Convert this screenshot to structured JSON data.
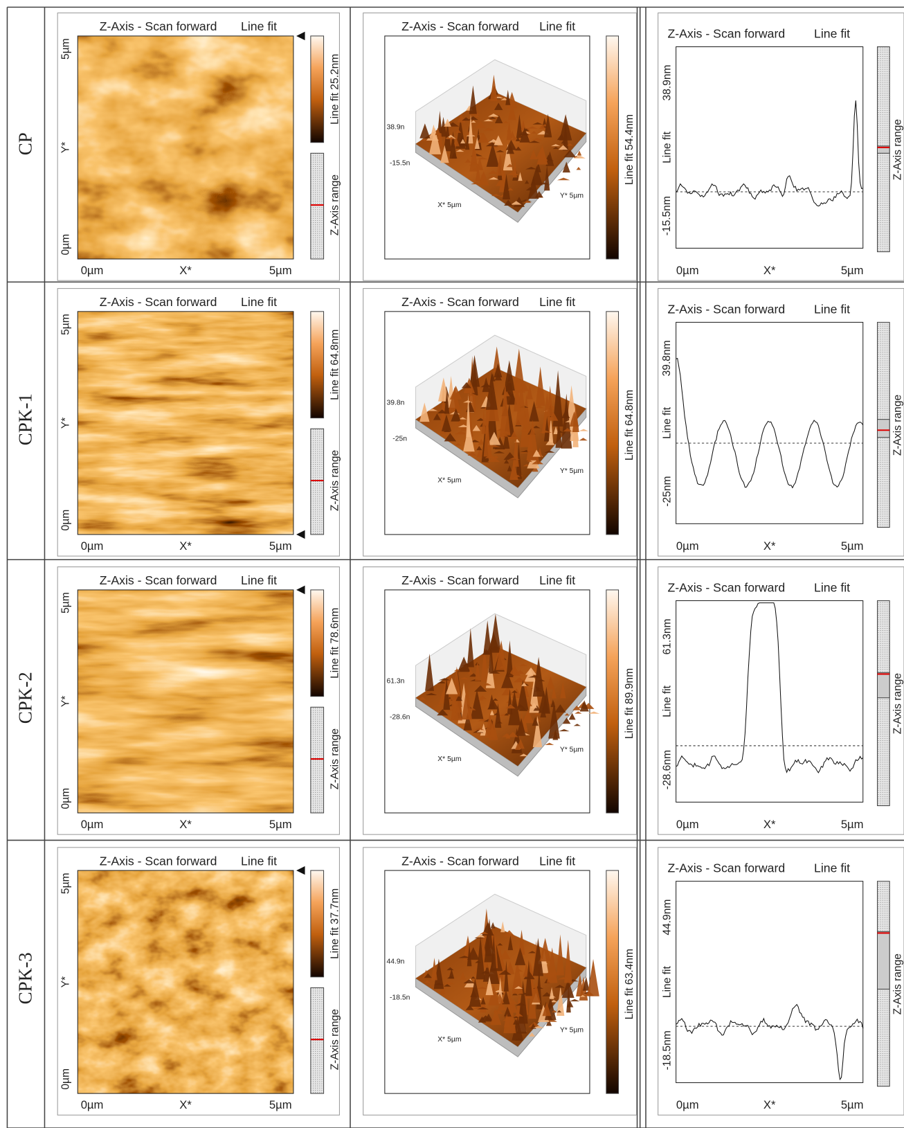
{
  "rows": [
    {
      "label": "CP",
      "image": {
        "title": "Z-Axis - Scan forward",
        "mode": "Line fit",
        "y_max": "5µm",
        "y_axis": "Y*",
        "y_min": "0µm",
        "x_min": "0µm",
        "x_axis": "X*",
        "x_max": "5µm",
        "colorbar": "Line fit 25.2nm",
        "range": "Z-Axis range"
      },
      "surface": {
        "title": "Z-Axis - Scan forward",
        "mode": "Line fit",
        "z_max": "38.9n",
        "z_min": "-15.5n",
        "x_axis": "X* 5µm",
        "y_axis": "Y* 5µm",
        "colorbar": "Line fit 54.4nm"
      },
      "profile": {
        "title": "Z-Axis - Scan forward",
        "mode": "Line fit",
        "y_max": "38.9nm",
        "y_axis": "Line fit",
        "y_min": "-15.5nm",
        "x_min": "0µm",
        "x_axis": "X*",
        "x_max": "5µm",
        "range": "Z-Axis range"
      }
    },
    {
      "label": "CPK-1",
      "image": {
        "title": "Z-Axis - Scan forward",
        "mode": "Line fit",
        "y_max": "5µm",
        "y_axis": "Y*",
        "y_min": "0µm",
        "x_min": "0µm",
        "x_axis": "X*",
        "x_max": "5µm",
        "colorbar": "Line fit 64.8nm",
        "range": "Z-Axis range"
      },
      "surface": {
        "title": "Z-Axis - Scan forward",
        "mode": "Line fit",
        "z_max": "39.8n",
        "z_min": "-25n",
        "x_axis": "X* 5µm",
        "y_axis": "Y* 5µm",
        "colorbar": "Line fit 64.8nm"
      },
      "profile": {
        "title": "Z-Axis - Scan forward",
        "mode": "Line fit",
        "y_max": "39.8nm",
        "y_axis": "Line fit",
        "y_min": "-25nm",
        "x_min": "0µm",
        "x_axis": "X*",
        "x_max": "5µm",
        "range": "Z-Axis range"
      }
    },
    {
      "label": "CPK-2",
      "image": {
        "title": "Z-Axis - Scan forward",
        "mode": "Line fit",
        "y_max": "5µm",
        "y_axis": "Y*",
        "y_min": "0µm",
        "x_min": "0µm",
        "x_axis": "X*",
        "x_max": "5µm",
        "colorbar": "Line fit 78.6nm",
        "range": "Z-Axis range"
      },
      "surface": {
        "title": "Z-Axis - Scan forward",
        "mode": "Line fit",
        "z_max": "61.3n",
        "z_min": "-28.6n",
        "x_axis": "X* 5µm",
        "y_axis": "Y* 5µm",
        "colorbar": "Line fit 89.9nm"
      },
      "profile": {
        "title": "Z-Axis - Scan forward",
        "mode": "Line fit",
        "y_max": "61.3nm",
        "y_axis": "Line fit",
        "y_min": "-28.6nm",
        "x_min": "0µm",
        "x_axis": "X*",
        "x_max": "5µm",
        "range": "Z-Axis range"
      }
    },
    {
      "label": "CPK-3",
      "image": {
        "title": "Z-Axis - Scan forward",
        "mode": "Line fit",
        "y_max": "5µm",
        "y_axis": "Y*",
        "y_min": "0µm",
        "x_min": "0µm",
        "x_axis": "X*",
        "x_max": "5µm",
        "colorbar": "Line fit 37.7nm",
        "range": "Z-Axis range"
      },
      "surface": {
        "title": "Z-Axis - Scan forward",
        "mode": "Line fit",
        "z_max": "44.9n",
        "z_min": "-18.5n",
        "x_axis": "X* 5µm",
        "y_axis": "Y* 5µm",
        "colorbar": "Line fit 63.4nm"
      },
      "profile": {
        "title": "Z-Axis - Scan forward",
        "mode": "Line fit",
        "y_max": "44.9nm",
        "y_axis": "Line fit",
        "y_min": "-18.5nm",
        "x_min": "0µm",
        "x_axis": "X*",
        "x_max": "5µm",
        "range": "Z-Axis range"
      }
    }
  ]
}
